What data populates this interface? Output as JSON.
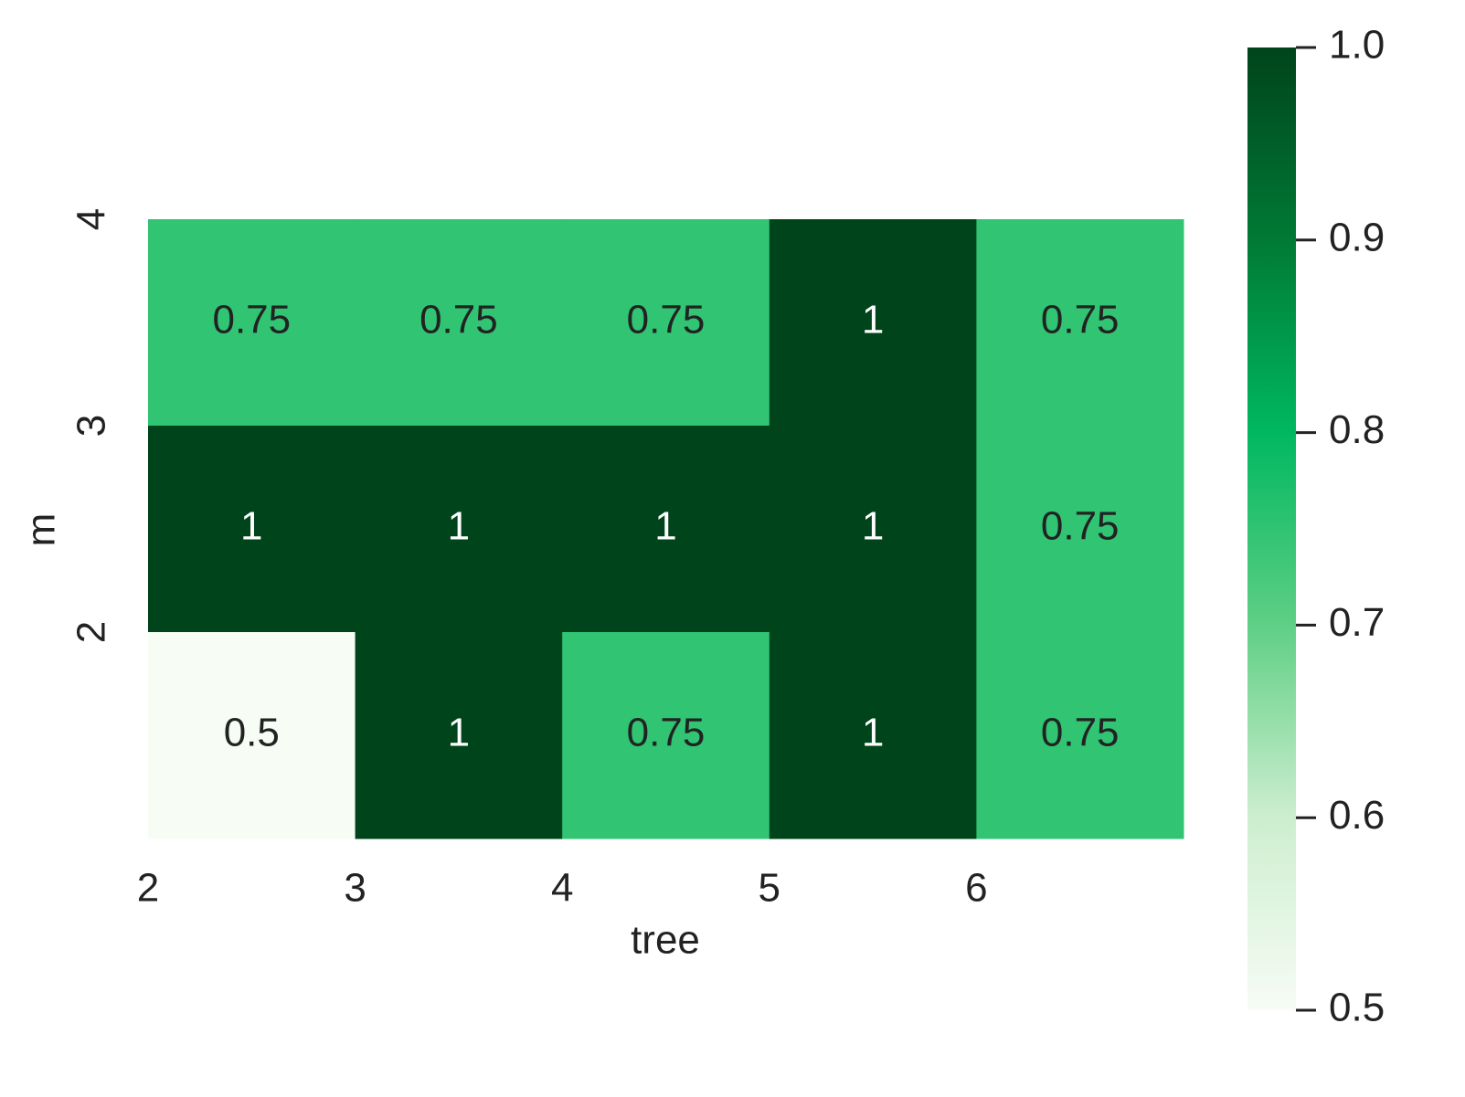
{
  "chart_data": {
    "type": "heatmap",
    "xlabel": "tree",
    "ylabel": "m",
    "xticks": [
      2,
      3,
      4,
      5,
      6
    ],
    "yticks": [
      4,
      3,
      2
    ],
    "values": [
      [
        0.75,
        0.75,
        0.75,
        1,
        0.75
      ],
      [
        1,
        1,
        1,
        1,
        0.75
      ],
      [
        0.5,
        1,
        0.75,
        1,
        0.75
      ]
    ],
    "colormap": [
      "#f7fcf5",
      "#cdeecf",
      "#5fcf85",
      "#00b860",
      "#007a35",
      "#00441b"
    ],
    "colorbar": {
      "lim": [
        0.5,
        1
      ],
      "ticks": [
        0.5,
        0.6,
        0.7,
        0.8,
        0.9,
        {
          "value": 1,
          "label": "1.0"
        }
      ]
    }
  }
}
